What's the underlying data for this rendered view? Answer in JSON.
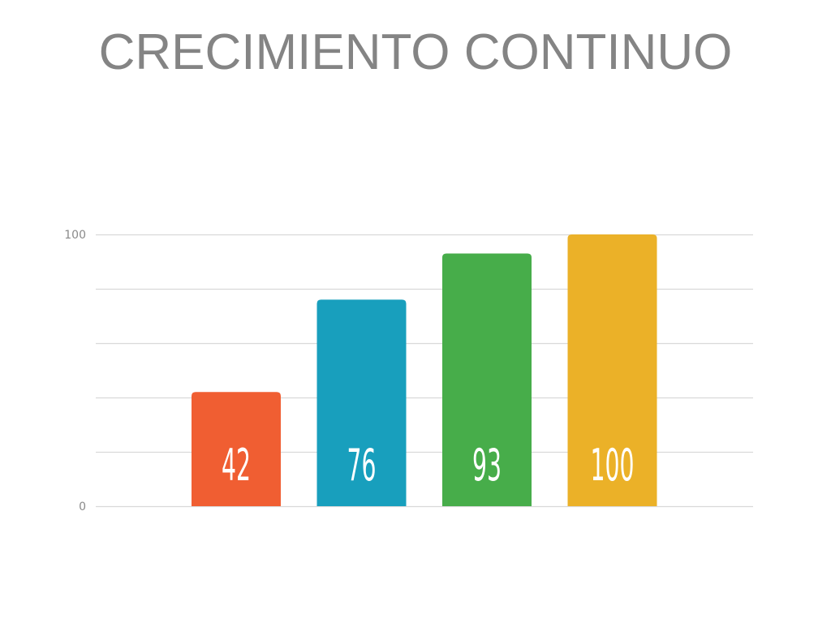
{
  "slide": {
    "title": "CRECIMIENTO CONTINUO"
  },
  "chart_data": {
    "type": "bar",
    "categories": [
      "",
      "",
      "",
      ""
    ],
    "values": [
      42,
      76,
      93,
      100
    ],
    "data_labels": [
      "42",
      "76",
      "93",
      "100"
    ],
    "colors": [
      "#f05e32",
      "#189fbd",
      "#47ad4a",
      "#ebb128"
    ],
    "title": "",
    "xlabel": "",
    "ylabel": "",
    "ylim": [
      0,
      100
    ],
    "yticks": [
      "0",
      "100"
    ],
    "grid": true,
    "legend": "none"
  }
}
